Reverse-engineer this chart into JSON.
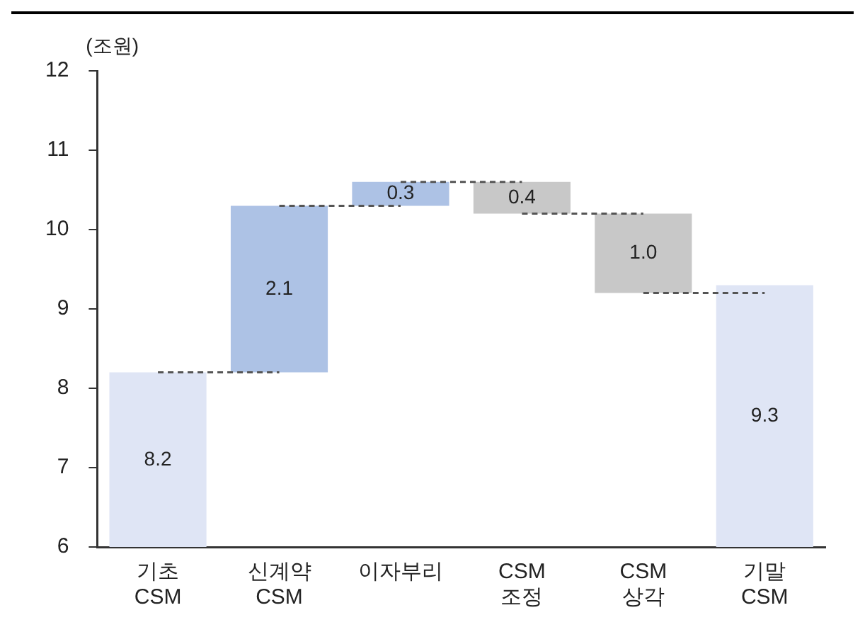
{
  "chart_data": {
    "type": "bar",
    "ylabel": "(조원)",
    "categories": [
      "기초\nCSM",
      "신계약\nCSM",
      "이자부리",
      "CSM\n조정",
      "CSM\n상각",
      "기말\nCSM"
    ],
    "values": [
      8.2,
      2.1,
      0.3,
      -0.4,
      -1.0,
      9.3
    ],
    "base": [
      null,
      8.2,
      10.3,
      10.6,
      10.2,
      null
    ],
    "colors": [
      "#dfe5f5",
      "#adc2e5",
      "#adc2e5",
      "#c8c8c8",
      "#c8c8c8",
      "#dfe5f5"
    ],
    "value_labels": [
      "8.2",
      "2.1",
      "0.3",
      "0.4",
      "1.0",
      "9.3"
    ],
    "series": [
      {
        "type": "line",
        "x": [
          "기초\nCSM",
          "신계약\nCSM"
        ],
        "values": [
          8.2,
          8.2
        ],
        "color": "#555555",
        "line_style": "dashed",
        "marker": "none"
      },
      {
        "type": "line",
        "x": [
          "신계약\nCSM",
          "이자부리"
        ],
        "values": [
          10.3,
          10.3
        ],
        "color": "#555555",
        "line_style": "dashed",
        "marker": "none"
      },
      {
        "type": "line",
        "x": [
          "이자부리",
          "CSM\n조정"
        ],
        "values": [
          10.6,
          10.6
        ],
        "color": "#555555",
        "line_style": "dashed",
        "marker": "none"
      },
      {
        "type": "line",
        "x": [
          "CSM\n조정",
          "CSM\n상각"
        ],
        "values": [
          10.2,
          10.2
        ],
        "color": "#555555",
        "line_style": "dashed",
        "marker": "none"
      },
      {
        "type": "line",
        "x": [
          "CSM\n상각",
          "기말\nCSM"
        ],
        "values": [
          9.2,
          9.2
        ],
        "color": "#555555",
        "line_style": "dashed",
        "marker": "none"
      }
    ],
    "ylim": [
      6,
      12
    ],
    "yticks": [
      6,
      7,
      8,
      9,
      10,
      11,
      12
    ],
    "grid": false,
    "legend": false
  }
}
